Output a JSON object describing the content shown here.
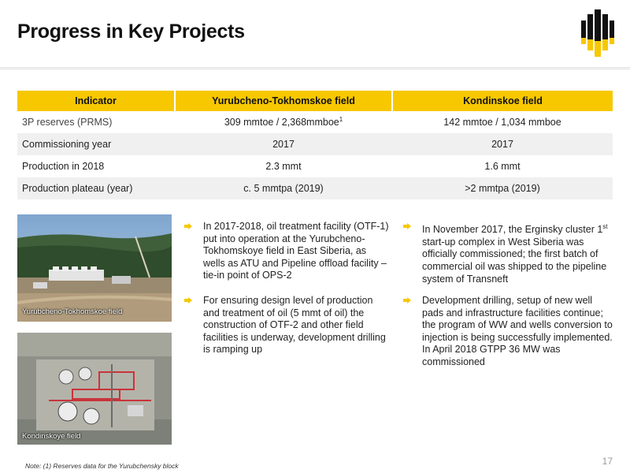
{
  "header": {
    "title": "Progress in Key Projects",
    "logo_icon": "rosneft-logo-icon"
  },
  "table": {
    "headers": [
      "Indicator",
      "Yurubcheno-Tokhomskoe field",
      "Kondinskoe field"
    ],
    "rows": [
      {
        "indicator": "3P reserves (PRMS)",
        "yurubcheno": "309 mmtoe / 2,368mmboe",
        "yurubcheno_sup": "1",
        "kondinskoe": "142 mmtoe / 1,034 mmboe"
      },
      {
        "indicator": "Commissioning year",
        "yurubcheno": "2017",
        "kondinskoe": "2017"
      },
      {
        "indicator": "Production in 2018",
        "yurubcheno": "2.3 mmt",
        "kondinskoe": "1.6 mmt"
      },
      {
        "indicator": "Production plateau   (year)",
        "yurubcheno": "c. 5 mmtpa (2019)",
        "kondinskoe": ">2 mmtpa (2019)"
      }
    ]
  },
  "photos": [
    {
      "caption": "Yurubcheno-Tokhomskoe field"
    },
    {
      "caption": "Kondinskoye field"
    }
  ],
  "bullets_left": [
    "In 2017-2018, oil treatment facility (OTF-1) put into operation at the Yurubcheno-Tokhomskoye field in East Siberia, as wells as ATU and Pipeline offload facility – tie-in point of OPS-2",
    "For ensuring design level of production and  treatment of oil (5 mmt of oil) the construction of OTF-2 and other field facilities is underway, development drilling is ramping up"
  ],
  "bullets_right": {
    "first_pre": "In November 2017, the Erginsky cluster 1",
    "first_sup": "st",
    "first_post": " start-up complex in West Siberia was officially commissioned; the first batch of commercial oil was shipped to the pipeline system of Transneft",
    "second_a": "Development drilling, setup of new well pads and infrastructure facilities continue; the program of WW and wells conversion to injection is being successfully implemented.",
    "second_b": "In April 2018 GTPP 36 MW was commissioned"
  },
  "footnote": "Note: (1) Reserves data for the Yurubchensky block",
  "page_number": "17",
  "colors": {
    "accent": "#f7c800",
    "row_alt": "#f0f0f0"
  }
}
